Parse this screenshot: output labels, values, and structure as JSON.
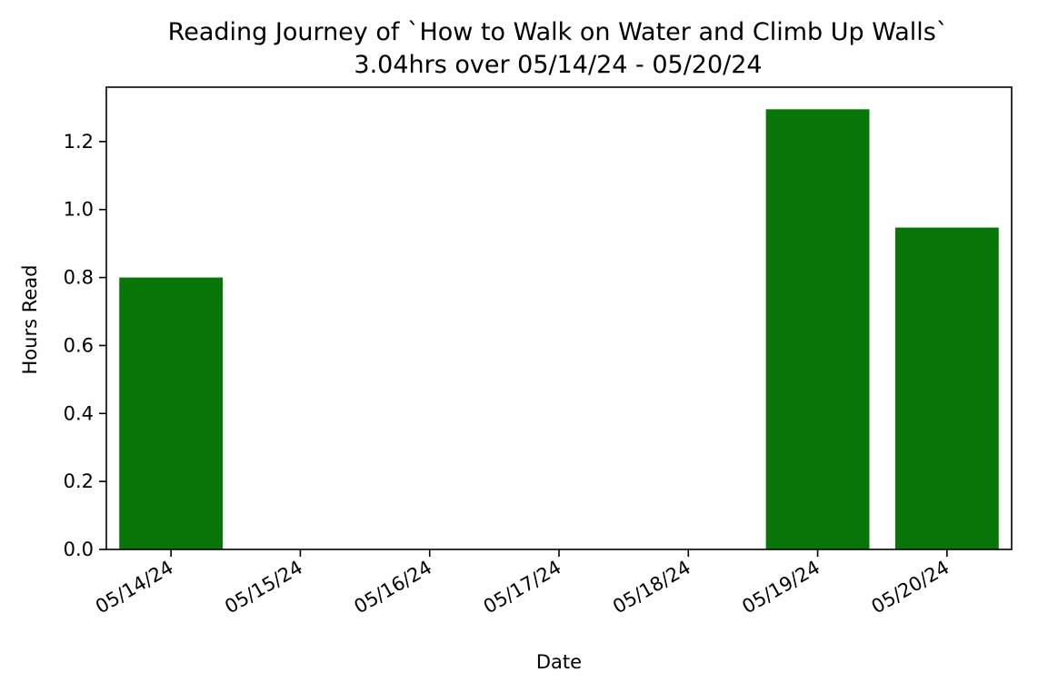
{
  "chart_data": {
    "type": "bar",
    "title": "Reading Journey of `How to Walk on Water and Climb Up Walls`",
    "subtitle": "3.04hrs over 05/14/24 - 05/20/24",
    "xlabel": "Date",
    "ylabel": "Hours Read",
    "categories": [
      "05/14/24",
      "05/15/24",
      "05/16/24",
      "05/17/24",
      "05/18/24",
      "05/19/24",
      "05/20/24"
    ],
    "values": [
      0.8,
      0,
      0,
      0,
      0,
      1.295,
      0.947
    ],
    "ylim": [
      0,
      1.36
    ],
    "yticks": [
      0.0,
      0.2,
      0.4,
      0.6,
      0.8,
      1.0,
      1.2
    ],
    "ytick_labels": [
      "0.0",
      "0.2",
      "0.4",
      "0.6",
      "0.8",
      "1.0",
      "1.2"
    ],
    "bar_color": "#087508",
    "grid": false
  }
}
